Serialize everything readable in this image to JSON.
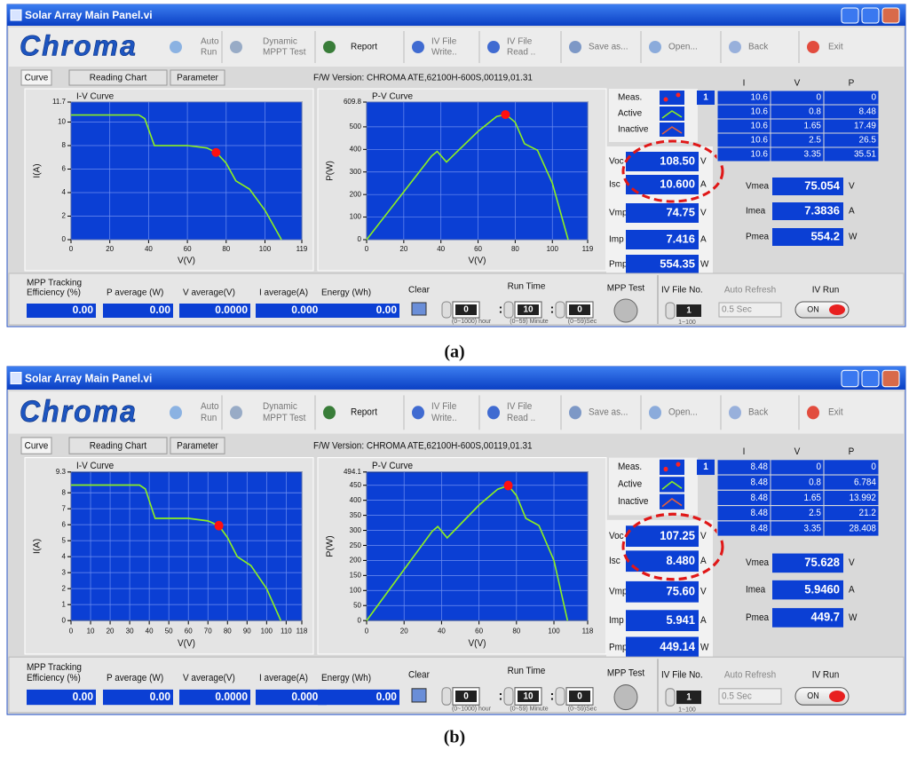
{
  "panels": [
    {
      "caption": "(a)",
      "window_title": "Solar Array Main Panel.vi",
      "logo": "Chroma",
      "buttons": [
        {
          "lines": [
            "Auto",
            "Run"
          ]
        },
        {
          "lines": [
            "Dynamic",
            "MPPT Test"
          ]
        },
        {
          "lines": [
            "Report"
          ]
        },
        {
          "lines": [
            "IV File",
            "Write.."
          ]
        },
        {
          "lines": [
            "IV File",
            "Read .."
          ]
        },
        {
          "lines": [
            "Save as..."
          ]
        },
        {
          "lines": [
            "Open..."
          ]
        },
        {
          "lines": [
            "Back"
          ]
        },
        {
          "lines": [
            "Exit"
          ]
        }
      ],
      "tabs": [
        "Curve",
        "Reading Chart",
        "Parameter"
      ],
      "firmware": "F/W Version: CHROMA ATE,62100H-600S,00119,01.31",
      "iv_chart": {
        "title": "I-V Curve",
        "x_label": "V(V)",
        "y_label": "I(A)",
        "xlim": [
          0,
          119
        ],
        "ylim": [
          0,
          11.7
        ],
        "xticks": [
          0,
          20,
          40,
          60,
          80,
          100,
          119
        ],
        "yticks": [
          0,
          2,
          4,
          6,
          8,
          10,
          11.7
        ],
        "curve": {
          "x": [
            0,
            35,
            38,
            43,
            60,
            70,
            75,
            80,
            85,
            92,
            100,
            108.5
          ],
          "y": [
            10.6,
            10.6,
            10.3,
            8.0,
            8.0,
            7.8,
            7.4,
            6.5,
            5.0,
            4.3,
            2.5,
            0
          ]
        },
        "mpp": {
          "x": 74.75,
          "y": 7.416
        }
      },
      "pv_chart": {
        "title": "P-V Curve",
        "x_label": "V(V)",
        "y_label": "P(W)",
        "xlim": [
          0,
          119
        ],
        "ylim": [
          0,
          609.8
        ],
        "xticks": [
          0,
          20,
          40,
          60,
          80,
          100,
          119
        ],
        "yticks": [
          0,
          100,
          200,
          300,
          400,
          500,
          609.8
        ],
        "curve": {
          "x": [
            0,
            35,
            38,
            43,
            60,
            70,
            75,
            80,
            85,
            92,
            100,
            108.5
          ],
          "y": [
            0,
            371,
            391,
            344,
            480,
            546,
            555,
            520,
            425,
            396,
            250,
            0
          ]
        },
        "mpp": {
          "x": 74.75,
          "y": 554.35
        }
      },
      "legend": [
        "Meas.",
        "Active",
        "Inactive"
      ],
      "index": "1",
      "readouts": [
        {
          "label": "Voc",
          "value": "108.50",
          "unit": "V"
        },
        {
          "label": "Isc",
          "value": "10.600",
          "unit": "A"
        },
        {
          "label": "Vmp",
          "value": "74.75",
          "unit": "V"
        },
        {
          "label": "Imp",
          "value": "7.416",
          "unit": "A"
        },
        {
          "label": "Pmp",
          "value": "554.35",
          "unit": "W"
        }
      ],
      "table": {
        "header": [
          "I",
          "V",
          "P"
        ],
        "rows": [
          [
            "10.6",
            "0",
            "0"
          ],
          [
            "10.6",
            "0.8",
            "8.48"
          ],
          [
            "10.6",
            "1.65",
            "17.49"
          ],
          [
            "10.6",
            "2.5",
            "26.5"
          ],
          [
            "10.6",
            "3.35",
            "35.51"
          ]
        ]
      },
      "measures": [
        {
          "label": "Vmea",
          "value": "75.054",
          "unit": "V"
        },
        {
          "label": "Imea",
          "value": "7.3836",
          "unit": "A"
        },
        {
          "label": "Pmea",
          "value": "554.2",
          "unit": "W"
        }
      ],
      "stats": [
        {
          "label": [
            "MPP Tracking",
            "Efficiency (%)"
          ],
          "value": "0.00"
        },
        {
          "label": [
            "P average (W)"
          ],
          "value": "0.00"
        },
        {
          "label": [
            "V average(V)"
          ],
          "value": "0.0000"
        },
        {
          "label": [
            "I average(A)"
          ],
          "value": "0.0000"
        },
        {
          "label": [
            "Energy (Wh)"
          ],
          "value": "0.00"
        }
      ],
      "clear": "Clear",
      "run_time": {
        "label": "Run Time",
        "hour": "0",
        "minute": "10",
        "second": "0",
        "separator": ":",
        "hour_range": "(0~1000) hour",
        "minute_range": "(0~59) Minute",
        "second_range": "(0~59)Sec"
      },
      "mpp_test": "MPP Test",
      "iv_file_no": {
        "label": "IV File No.",
        "value": "1",
        "range": "1~100"
      },
      "auto_refresh": {
        "label": "Auto Refresh",
        "value": "0.5 Sec"
      },
      "iv_run": {
        "label": "IV Run",
        "value": "ON"
      }
    },
    {
      "caption": "(b)",
      "window_title": "Solar Array Main Panel.vi",
      "logo": "Chroma",
      "buttons": [
        {
          "lines": [
            "Auto",
            "Run"
          ]
        },
        {
          "lines": [
            "Dynamic",
            "MPPT Test"
          ]
        },
        {
          "lines": [
            "Report"
          ]
        },
        {
          "lines": [
            "IV File",
            "Write.."
          ]
        },
        {
          "lines": [
            "IV File",
            "Read .."
          ]
        },
        {
          "lines": [
            "Save as..."
          ]
        },
        {
          "lines": [
            "Open..."
          ]
        },
        {
          "lines": [
            "Back"
          ]
        },
        {
          "lines": [
            "Exit"
          ]
        }
      ],
      "tabs": [
        "Curve",
        "Reading Chart",
        "Parameter"
      ],
      "firmware": "F/W Version: CHROMA ATE,62100H-600S,00119,01.31",
      "iv_chart": {
        "title": "I-V Curve",
        "x_label": "V(V)",
        "y_label": "I(A)",
        "xlim": [
          0,
          118
        ],
        "ylim": [
          0,
          9.3
        ],
        "xticks": [
          0,
          10,
          20,
          30,
          40,
          50,
          60,
          70,
          80,
          90,
          100,
          110,
          118
        ],
        "yticks": [
          0,
          1,
          2,
          3,
          4,
          5,
          6,
          7,
          8,
          9.3
        ],
        "curve": {
          "x": [
            0,
            35,
            38,
            43,
            60,
            70,
            75.6,
            80,
            85,
            92,
            100,
            107.25
          ],
          "y": [
            8.48,
            8.48,
            8.24,
            6.4,
            6.4,
            6.24,
            5.94,
            5.2,
            4.0,
            3.44,
            2.0,
            0
          ]
        },
        "mpp": {
          "x": 75.6,
          "y": 5.941
        }
      },
      "pv_chart": {
        "title": "P-V Curve",
        "x_label": "V(V)",
        "y_label": "P(W)",
        "xlim": [
          0,
          118
        ],
        "ylim": [
          0,
          494.1
        ],
        "xticks": [
          0,
          20,
          40,
          60,
          80,
          100,
          118
        ],
        "yticks": [
          0,
          50,
          100,
          150,
          200,
          250,
          300,
          350,
          400,
          450,
          494.1
        ],
        "curve": {
          "x": [
            0,
            35,
            38,
            43,
            60,
            70,
            75.6,
            80,
            85,
            92,
            100,
            107.25
          ],
          "y": [
            0,
            297,
            313,
            275,
            384,
            437,
            449,
            416,
            340,
            316,
            200,
            0
          ]
        },
        "mpp": {
          "x": 75.6,
          "y": 449.14
        }
      },
      "legend": [
        "Meas.",
        "Active",
        "Inactive"
      ],
      "index": "1",
      "readouts": [
        {
          "label": "Voc",
          "value": "107.25",
          "unit": "V"
        },
        {
          "label": "Isc",
          "value": "8.480",
          "unit": "A"
        },
        {
          "label": "Vmp",
          "value": "75.60",
          "unit": "V"
        },
        {
          "label": "Imp",
          "value": "5.941",
          "unit": "A"
        },
        {
          "label": "Pmp",
          "value": "449.14",
          "unit": "W"
        }
      ],
      "table": {
        "header": [
          "I",
          "V",
          "P"
        ],
        "rows": [
          [
            "8.48",
            "0",
            "0"
          ],
          [
            "8.48",
            "0.8",
            "6.784"
          ],
          [
            "8.48",
            "1.65",
            "13.992"
          ],
          [
            "8.48",
            "2.5",
            "21.2"
          ],
          [
            "8.48",
            "3.35",
            "28.408"
          ]
        ]
      },
      "measures": [
        {
          "label": "Vmea",
          "value": "75.628",
          "unit": "V"
        },
        {
          "label": "Imea",
          "value": "5.9460",
          "unit": "A"
        },
        {
          "label": "Pmea",
          "value": "449.7",
          "unit": "W"
        }
      ],
      "stats": [
        {
          "label": [
            "MPP Tracking",
            "Efficiency (%)"
          ],
          "value": "0.00"
        },
        {
          "label": [
            "P average (W)"
          ],
          "value": "0.00"
        },
        {
          "label": [
            "V average(V)"
          ],
          "value": "0.0000"
        },
        {
          "label": [
            "I average(A)"
          ],
          "value": "0.0000"
        },
        {
          "label": [
            "Energy (Wh)"
          ],
          "value": "0.00"
        }
      ],
      "clear": "Clear",
      "run_time": {
        "label": "Run Time",
        "hour": "0",
        "minute": "10",
        "second": "0",
        "separator": ":",
        "hour_range": "(0~1000) hour",
        "minute_range": "(0~59) Minute",
        "second_range": "(0~59)Sec"
      },
      "mpp_test": "MPP Test",
      "iv_file_no": {
        "label": "IV File No.",
        "value": "1",
        "range": "1~100"
      },
      "auto_refresh": {
        "label": "Auto Refresh",
        "value": "0.5 Sec"
      },
      "iv_run": {
        "label": "IV Run",
        "value": "ON"
      }
    }
  ]
}
